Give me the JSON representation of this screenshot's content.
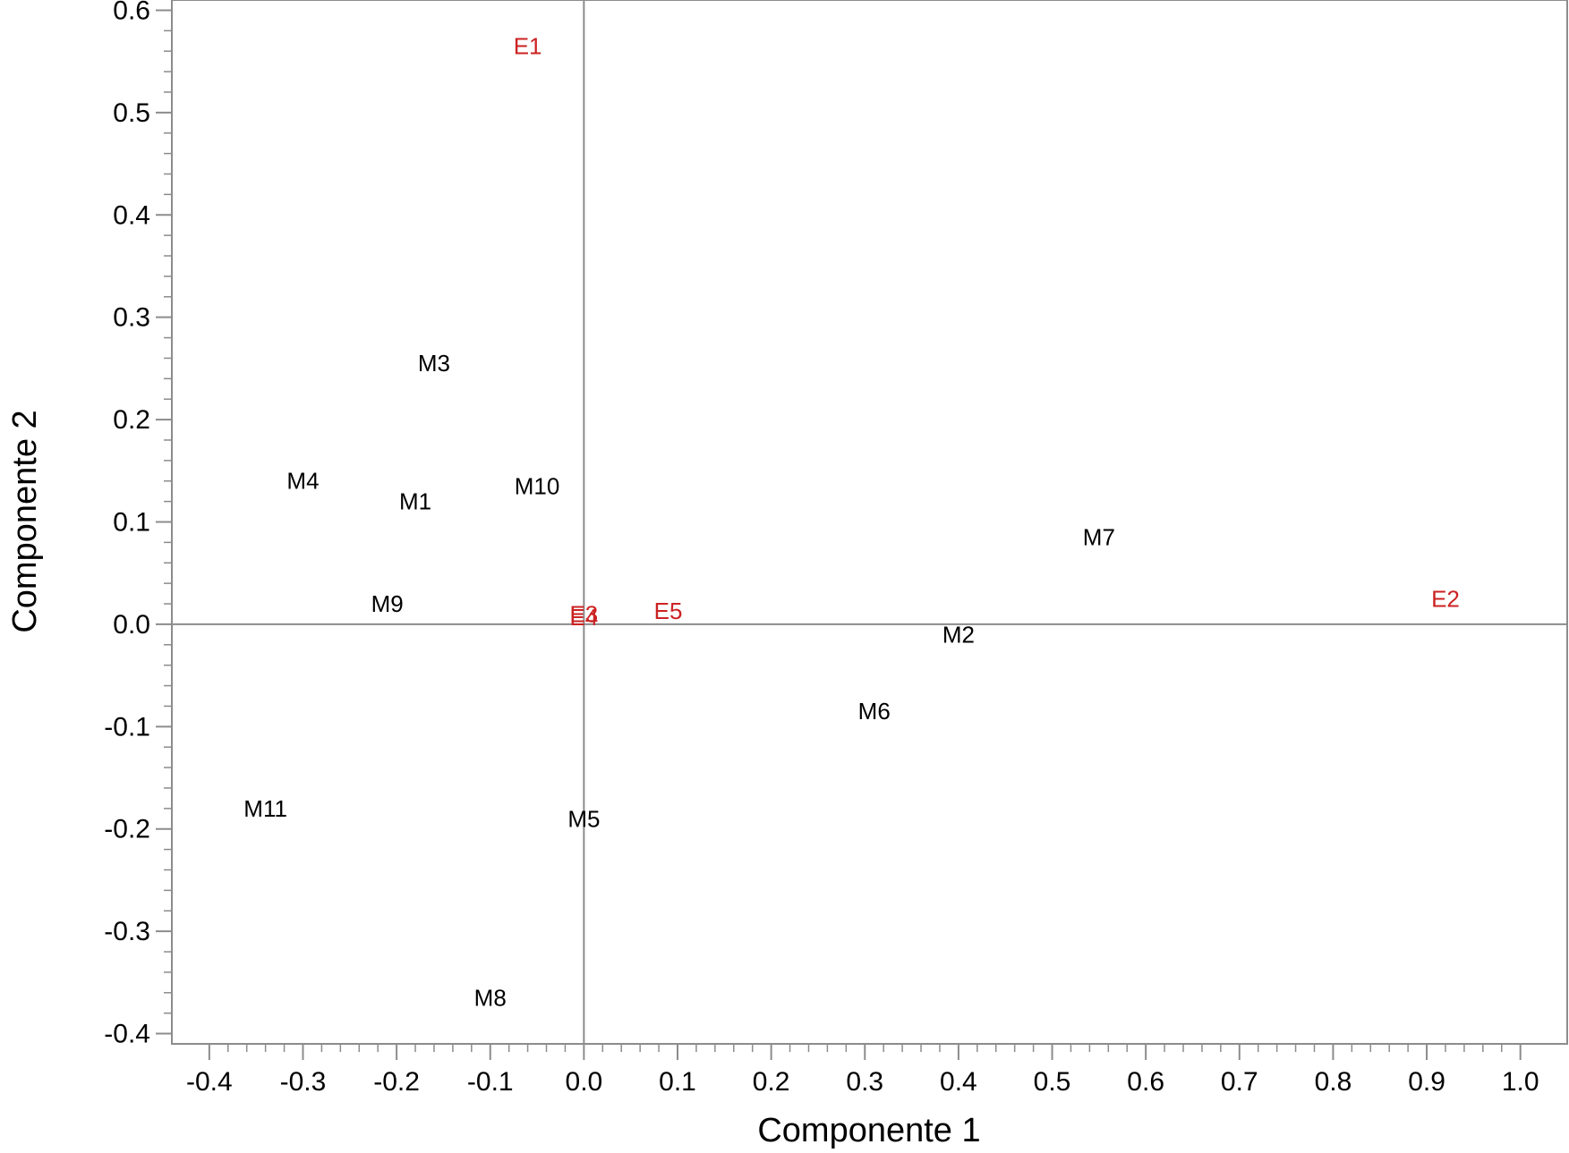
{
  "chart_data": {
    "type": "scatter",
    "title": "",
    "xlabel": "Componente 1",
    "ylabel": "Componente 2",
    "xlim": [
      -0.44,
      1.05
    ],
    "ylim": [
      -0.41,
      0.61
    ],
    "xticks": [
      -0.4,
      -0.3,
      -0.2,
      -0.1,
      0.0,
      0.1,
      0.2,
      0.3,
      0.4,
      0.5,
      0.6,
      0.7,
      0.8,
      0.9,
      1.0
    ],
    "xtick_labels": [
      "-0.4",
      "-0.3",
      "-0.2",
      "-0.1",
      "0.0",
      "0.1",
      "0.2",
      "0.3",
      "0.4",
      "0.5",
      "0.6",
      "0.7",
      "0.8",
      "0.9",
      "1.0"
    ],
    "yticks": [
      -0.4,
      -0.3,
      -0.2,
      -0.1,
      0.0,
      0.1,
      0.2,
      0.3,
      0.4,
      0.5,
      0.6
    ],
    "ytick_labels": [
      "-0.4",
      "-0.3",
      "-0.2",
      "-0.1",
      "0.0",
      "0.1",
      "0.2",
      "0.3",
      "0.4",
      "0.5",
      "0.6"
    ],
    "grid": false,
    "reference_lines": {
      "x": 0.0,
      "y": 0.0
    },
    "series": [
      {
        "color": "#000000",
        "points": [
          {
            "label": "M1",
            "x": -0.18,
            "y": 0.12
          },
          {
            "label": "M2",
            "x": 0.4,
            "y": -0.01
          },
          {
            "label": "M3",
            "x": -0.16,
            "y": 0.255
          },
          {
            "label": "M4",
            "x": -0.3,
            "y": 0.14
          },
          {
            "label": "M5",
            "x": 0.0,
            "y": -0.19
          },
          {
            "label": "M6",
            "x": 0.31,
            "y": -0.085
          },
          {
            "label": "M7",
            "x": 0.55,
            "y": 0.085
          },
          {
            "label": "M8",
            "x": -0.1,
            "y": -0.365
          },
          {
            "label": "M9",
            "x": -0.21,
            "y": 0.02
          },
          {
            "label": "M10",
            "x": -0.05,
            "y": 0.135
          },
          {
            "label": "M11",
            "x": -0.34,
            "y": -0.18
          }
        ]
      },
      {
        "color": "#cc2222",
        "points": [
          {
            "label": "E1",
            "x": -0.06,
            "y": 0.565
          },
          {
            "label": "E2",
            "x": 0.92,
            "y": 0.025
          },
          {
            "label": "E3",
            "x": 0.0,
            "y": 0.01
          },
          {
            "label": "E4",
            "x": 0.0,
            "y": 0.007
          },
          {
            "label": "E5",
            "x": 0.09,
            "y": 0.013
          }
        ]
      }
    ]
  }
}
